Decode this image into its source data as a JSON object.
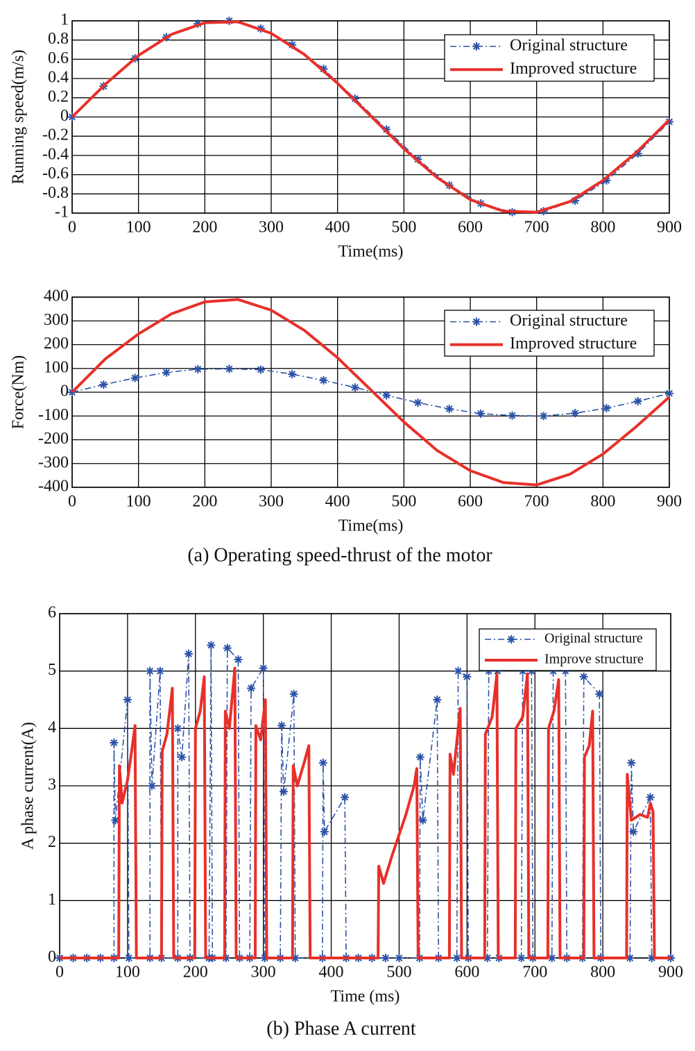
{
  "chart_data": [
    {
      "type": "line",
      "x_label": "Time(ms)",
      "y_label": "Running speed(m/s)",
      "xlim": [
        0,
        900
      ],
      "xticks": [
        0,
        100,
        200,
        300,
        400,
        500,
        600,
        700,
        800,
        900
      ],
      "ylim": [
        -1,
        1
      ],
      "yticks": [
        -1,
        -0.8,
        -0.6,
        -0.4,
        -0.2,
        0,
        0.2,
        0.4,
        0.6,
        0.8,
        1
      ],
      "grid": true,
      "legend": "upper right",
      "series": [
        {
          "name": "Original structure",
          "color": "#2a52a8",
          "linestyle": "dashdot",
          "marker": "*",
          "x": [
            0,
            47.4,
            94.7,
            142.1,
            189.5,
            236.8,
            284.2,
            331.6,
            378.9,
            426.3,
            473.7,
            521.1,
            568.4,
            615.8,
            663.2,
            710.5,
            757.9,
            805.3,
            852.6,
            900
          ],
          "values": [
            0,
            0.32,
            0.61,
            0.83,
            0.97,
            1.0,
            0.92,
            0.75,
            0.5,
            0.19,
            -0.13,
            -0.44,
            -0.71,
            -0.9,
            -0.99,
            -0.98,
            -0.87,
            -0.66,
            -0.38,
            -0.05
          ]
        },
        {
          "name": "Improved structure",
          "color": "#e8302a",
          "linestyle": "solid",
          "x": [
            0,
            50,
            100,
            150,
            200,
            250,
            300,
            350,
            400,
            450,
            500,
            550,
            600,
            650,
            700,
            750,
            800,
            850,
            900
          ],
          "values": [
            0,
            0.34,
            0.64,
            0.86,
            0.98,
            0.99,
            0.87,
            0.65,
            0.35,
            0.01,
            -0.33,
            -0.63,
            -0.86,
            -0.98,
            -0.99,
            -0.88,
            -0.66,
            -0.37,
            -0.03
          ]
        }
      ]
    },
    {
      "type": "line",
      "x_label": "Time(ms)",
      "y_label": "Force(Nm)",
      "xlim": [
        0,
        900
      ],
      "xticks": [
        0,
        100,
        200,
        300,
        400,
        500,
        600,
        700,
        800,
        900
      ],
      "ylim": [
        -400,
        400
      ],
      "yticks": [
        -400,
        -300,
        -200,
        -100,
        0,
        100,
        200,
        300,
        400
      ],
      "grid": true,
      "legend": "upper right",
      "series": [
        {
          "name": "Original structure",
          "color": "#2a52a8",
          "linestyle": "dashdot",
          "marker": "*",
          "x": [
            0,
            47.4,
            94.7,
            142.1,
            189.5,
            236.8,
            284.2,
            331.6,
            378.9,
            426.3,
            473.7,
            521.1,
            568.4,
            615.8,
            663.2,
            710.5,
            757.9,
            805.3,
            852.6,
            900
          ],
          "values": [
            0,
            32,
            60,
            83,
            97,
            98,
            95,
            76,
            50,
            20,
            -13,
            -44,
            -70,
            -90,
            -98,
            -100,
            -88,
            -67,
            -38,
            -5
          ]
        },
        {
          "name": "Improved structure",
          "color": "#e8302a",
          "linestyle": "solid",
          "x": [
            0,
            50,
            100,
            150,
            200,
            250,
            300,
            350,
            400,
            450,
            500,
            550,
            600,
            650,
            700,
            750,
            800,
            850,
            900
          ],
          "values": [
            0,
            140,
            245,
            330,
            380,
            390,
            345,
            260,
            145,
            10,
            -125,
            -245,
            -330,
            -380,
            -390,
            -345,
            -260,
            -145,
            -20
          ]
        }
      ]
    },
    {
      "type": "line",
      "x_label": "Time (ms)",
      "y_label": "A phase current(A)",
      "xlim": [
        0,
        900
      ],
      "xticks": [
        0,
        100,
        200,
        300,
        400,
        500,
        600,
        700,
        800,
        900
      ],
      "ylim": [
        0,
        6
      ],
      "yticks": [
        0,
        1,
        2,
        3,
        4,
        5,
        6
      ],
      "grid": true,
      "legend": "upper right",
      "series": [
        {
          "name": "Original structure",
          "color": "#2a52a8",
          "linestyle": "dashdot",
          "marker": "*",
          "x": [
            0,
            20,
            40,
            60,
            80,
            80,
            82,
            100,
            102,
            133,
            133,
            136,
            148,
            150,
            174,
            174,
            180,
            190,
            192,
            220,
            223,
            225,
            245,
            247,
            263,
            265,
            280,
            282,
            300,
            302,
            325,
            327,
            330,
            345,
            347,
            387,
            388,
            390,
            420,
            422,
            440,
            460,
            480,
            500,
            530,
            531,
            535,
            556,
            558,
            585,
            587,
            600,
            602,
            630,
            632,
            645,
            647,
            680,
            682,
            695,
            697,
            725,
            727,
            745,
            747,
            770,
            772,
            795,
            797,
            840,
            842,
            845,
            870,
            872,
            900
          ],
          "values": [
            0,
            0,
            0,
            0,
            0,
            3.75,
            2.4,
            4.5,
            0,
            0,
            5.0,
            3.0,
            5.0,
            0,
            0,
            4.0,
            3.5,
            5.3,
            0,
            0,
            5.45,
            0,
            0,
            5.4,
            5.2,
            0,
            0,
            4.7,
            5.05,
            0,
            0,
            4.05,
            2.9,
            4.6,
            0,
            0,
            3.4,
            2.2,
            2.8,
            0,
            0,
            0,
            0,
            0,
            0,
            3.5,
            2.4,
            4.5,
            0,
            0,
            5.0,
            4.9,
            0,
            0,
            5.0,
            5.0,
            0,
            0,
            5.0,
            5.0,
            0,
            0,
            5.0,
            5.0,
            0,
            0,
            4.9,
            4.6,
            0,
            0,
            3.4,
            2.2,
            2.8,
            0,
            0
          ]
        },
        {
          "name": "Improve structure",
          "color": "#e8302a",
          "linestyle": "solid",
          "x": [
            0,
            87,
            88,
            92,
            100,
            106,
            111,
            113,
            150,
            151,
            158,
            166,
            168,
            199,
            200,
            207,
            213,
            215,
            243,
            244,
            250,
            258,
            260,
            288,
            289,
            296,
            303,
            305,
            343,
            344,
            350,
            360,
            367,
            369,
            469,
            470,
            477,
            490,
            510,
            522,
            526,
            528,
            574,
            575,
            580,
            590,
            592,
            626,
            627,
            637,
            644,
            646,
            671,
            672,
            682,
            689,
            691,
            719,
            720,
            728,
            735,
            737,
            772,
            773,
            780,
            785,
            787,
            835,
            836,
            842,
            855,
            866,
            870,
            874,
            876,
            900
          ],
          "values": [
            0,
            0,
            3.35,
            2.7,
            3.1,
            3.6,
            4.05,
            0,
            0,
            3.6,
            3.9,
            4.7,
            0,
            0,
            4.0,
            4.3,
            4.9,
            0,
            0,
            4.3,
            4.0,
            5.05,
            0,
            0,
            4.05,
            3.8,
            4.5,
            0,
            0,
            3.35,
            3.0,
            3.4,
            3.7,
            0,
            0,
            1.6,
            1.3,
            1.8,
            2.5,
            3.0,
            3.3,
            0,
            0,
            3.55,
            3.2,
            4.35,
            0,
            0,
            3.9,
            4.2,
            4.95,
            0,
            0,
            4.0,
            4.2,
            4.95,
            0,
            0,
            4.0,
            4.3,
            4.85,
            0,
            0,
            3.5,
            3.7,
            4.3,
            0,
            0,
            3.2,
            2.4,
            2.5,
            2.45,
            2.7,
            2.55,
            0,
            0
          ]
        }
      ]
    }
  ],
  "captions": [
    "(a) Operating speed-thrust of the motor",
    "(b) Phase A current"
  ]
}
